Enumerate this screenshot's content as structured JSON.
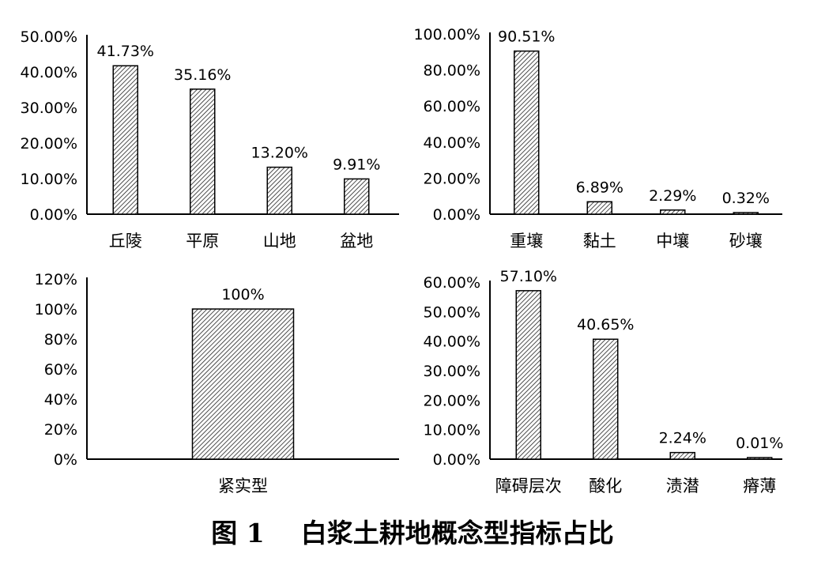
{
  "caption": "图 1    白浆土耕地概念型指标占比",
  "chart_data": [
    {
      "type": "bar",
      "categories": [
        "丘陵",
        "平原",
        "山地",
        "盆地"
      ],
      "values": [
        41.73,
        35.16,
        13.2,
        9.91
      ],
      "value_labels": [
        "41.73%",
        "35.16%",
        "13.20%",
        "9.91%"
      ],
      "yticks": [
        "0.00%",
        "10.00%",
        "20.00%",
        "30.00%",
        "40.00%",
        "50.00%"
      ],
      "ylim": [
        0,
        50
      ],
      "bar_fill": "diagonal-hatch"
    },
    {
      "type": "bar",
      "categories": [
        "重壤",
        "黏土",
        "中壤",
        "砂壤"
      ],
      "values": [
        90.51,
        6.89,
        2.29,
        0.32
      ],
      "value_labels": [
        "90.51%",
        "6.89%",
        "2.29%",
        "0.32%"
      ],
      "yticks": [
        "0.00%",
        "20.00%",
        "40.00%",
        "60.00%",
        "80.00%",
        "100.00%"
      ],
      "ylim": [
        0,
        100
      ],
      "bar_fill": "diagonal-hatch"
    },
    {
      "type": "bar",
      "categories": [
        "紧实型"
      ],
      "values": [
        100
      ],
      "value_labels": [
        "100%"
      ],
      "yticks": [
        "0%",
        "20%",
        "40%",
        "60%",
        "80%",
        "100%",
        "120%"
      ],
      "ylim": [
        0,
        120
      ],
      "bar_fill": "diagonal-hatch"
    },
    {
      "type": "bar",
      "categories": [
        "障碍层次",
        "酸化",
        "渍潜",
        "瘠薄"
      ],
      "values": [
        57.1,
        40.65,
        2.24,
        0.01
      ],
      "value_labels": [
        "57.10%",
        "40.65%",
        "2.24%",
        "0.01%"
      ],
      "yticks": [
        "0.00%",
        "10.00%",
        "20.00%",
        "30.00%",
        "40.00%",
        "50.00%",
        "60.00%"
      ],
      "ylim": [
        0,
        60
      ],
      "bar_fill": "diagonal-hatch"
    }
  ]
}
